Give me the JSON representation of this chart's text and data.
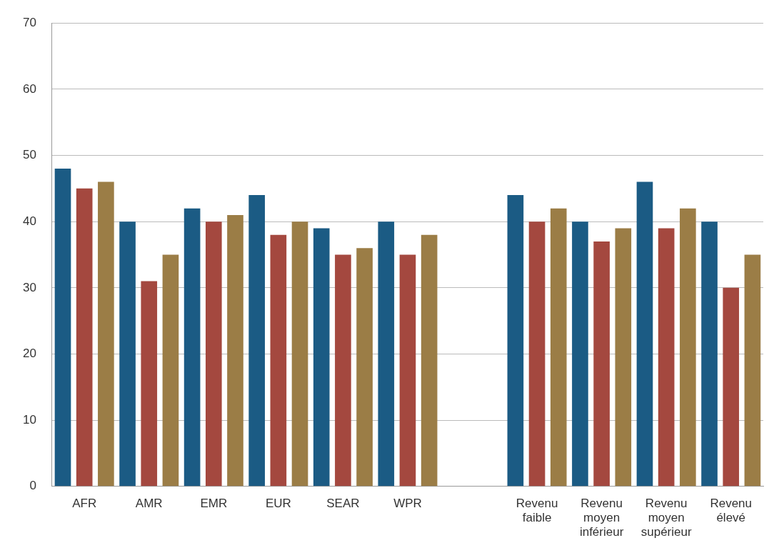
{
  "chart_data": {
    "type": "bar",
    "categories": [
      "AFR",
      "AMR",
      "EMR",
      "EUR",
      "SEAR",
      "WPR",
      null,
      "Revenu faible",
      "Revenu moyen inférieur",
      "Revenu moyen supérieur",
      "Revenu élevé"
    ],
    "series": [
      {
        "color": "#1b5b84",
        "values": [
          48,
          40,
          42,
          44,
          39,
          40,
          null,
          44,
          40,
          46,
          40
        ]
      },
      {
        "color": "#a4483f",
        "values": [
          45,
          31,
          40,
          38,
          35,
          35,
          null,
          40,
          37,
          39,
          30
        ]
      },
      {
        "color": "#9b7d46",
        "values": [
          46,
          35,
          41,
          40,
          36,
          38,
          null,
          42,
          39,
          42,
          35
        ]
      }
    ],
    "ylim": [
      0,
      70
    ],
    "yticks": [
      0,
      10,
      20,
      30,
      40,
      50,
      60,
      70
    ],
    "grid": "y",
    "legend": false
  }
}
